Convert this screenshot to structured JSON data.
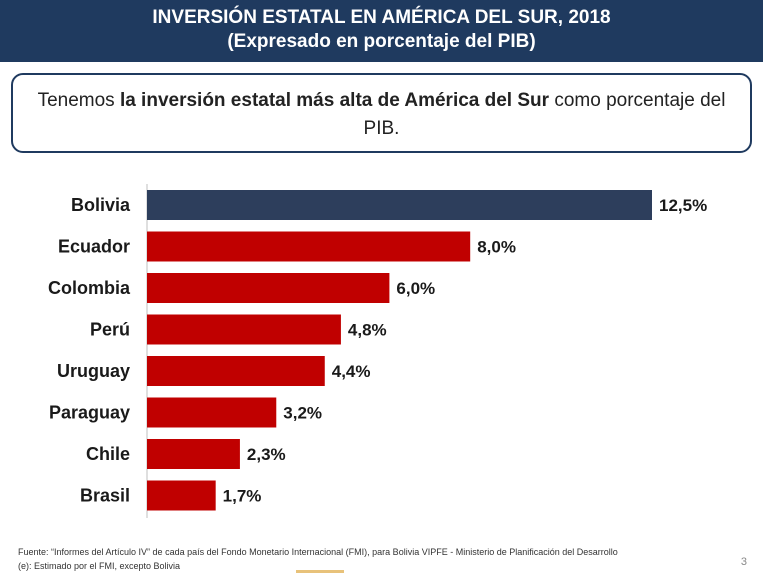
{
  "header": {
    "title_line1": "INVERSIÓN ESTATAL EN AMÉRICA DEL SUR, 2018",
    "title_line2": "(Expresado en porcentaje del PIB)"
  },
  "callout": {
    "text_before": "Tenemos ",
    "text_bold": "la inversión estatal más alta de América del Sur",
    "text_after": " como porcentaje del PIB."
  },
  "colors": {
    "header_bg": "#1f3a5f",
    "highlight_bar": "#2d3e5c",
    "default_bar": "#c00000"
  },
  "chart_data": {
    "type": "bar",
    "orientation": "horizontal",
    "categories": [
      "Bolivia",
      "Ecuador",
      "Colombia",
      "Perú",
      "Uruguay",
      "Paraguay",
      "Chile",
      "Brasil"
    ],
    "values": [
      12.5,
      8.0,
      6.0,
      4.8,
      4.4,
      3.2,
      2.3,
      1.7
    ],
    "value_labels": [
      "12,5%",
      "8,0%",
      "6,0%",
      "4,8%",
      "4,4%",
      "3,2%",
      "2,3%",
      "1,7%"
    ],
    "highlight_category": "Bolivia",
    "title": "INVERSIÓN ESTATAL EN AMÉRICA DEL SUR, 2018",
    "xlabel": "",
    "ylabel": "",
    "xlim": [
      0,
      12.5
    ],
    "grid": false
  },
  "footer": {
    "source_line": "Fuente: “Informes del Artículo IV” de cada país del Fondo Monetario Internacional (FMI), para Bolivia VIPFE - Ministerio de Planificación del Desarrollo",
    "note_line": "(e): Estimado por el FMI, excepto Bolivia",
    "page_number": "3"
  }
}
